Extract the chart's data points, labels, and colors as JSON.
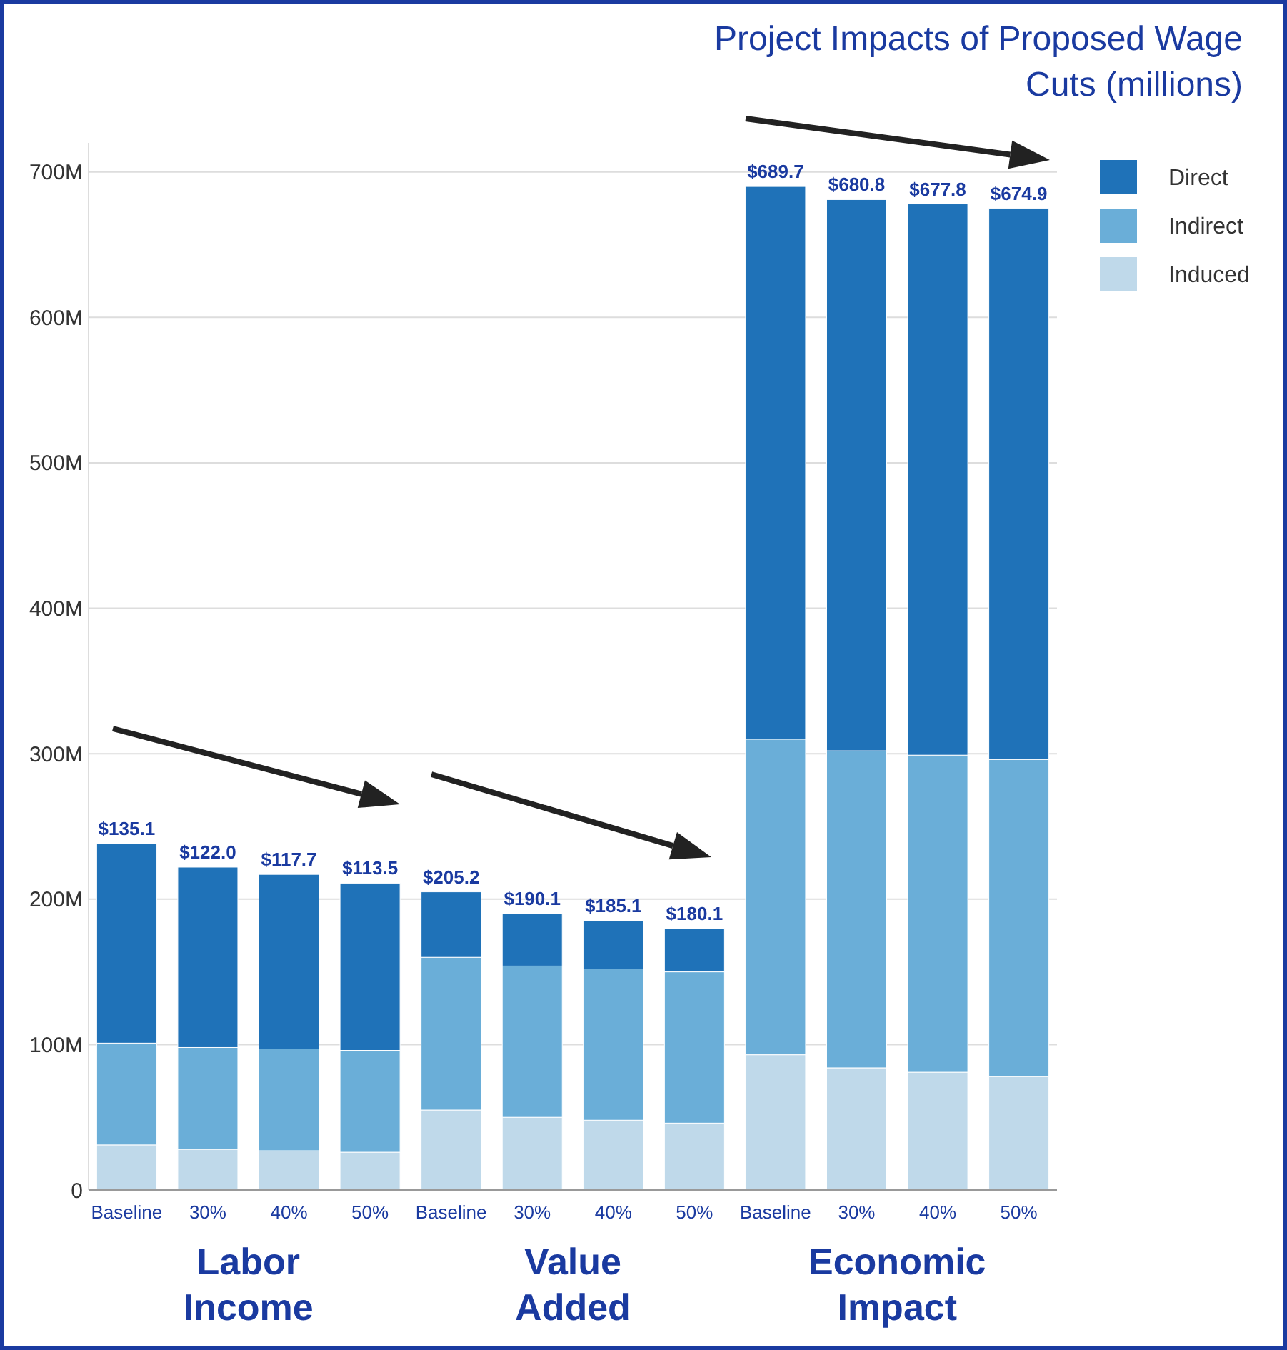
{
  "chart_data": {
    "type": "bar",
    "title": "Project Impacts of Proposed Wage Cuts (millions)",
    "categories": [
      "Baseline",
      "30%",
      "40%",
      "50%",
      "Baseline",
      "30%",
      "40%",
      "50%",
      "Baseline",
      "30%",
      "40%",
      "50%"
    ],
    "series": [
      {
        "name": "Induced",
        "color": "#bfd9ea",
        "values": [
          31,
          28,
          27,
          26,
          55,
          50,
          48,
          46,
          93,
          84,
          81,
          78
        ]
      },
      {
        "name": "Indirect",
        "color": "#6aaed8",
        "values": [
          70,
          70,
          70,
          70,
          105,
          104,
          104,
          104,
          217,
          218,
          218,
          218
        ]
      },
      {
        "name": "Direct",
        "color": "#1f72b8",
        "values": [
          137,
          124,
          120,
          115,
          45,
          36,
          33,
          30,
          380,
          379,
          379,
          379
        ]
      }
    ],
    "stacked": true,
    "value_labels": [
      "$135.1",
      "$122.0",
      "$117.7",
      "$113.5",
      "$205.2",
      "$190.1",
      "$185.1",
      "$180.1",
      "$689.7",
      "$680.8",
      "$677.8",
      "$674.9"
    ],
    "ylim": [
      0,
      720
    ],
    "yticks": [
      0,
      {
        "value": 100,
        "label": "100M"
      },
      {
        "value": 200,
        "label": "200M"
      },
      {
        "value": 300,
        "label": "300M"
      },
      {
        "value": 400,
        "label": "400M"
      },
      {
        "value": 500,
        "label": "500M"
      },
      {
        "value": 600,
        "label": "600M"
      },
      {
        "value": 700,
        "label": "700M"
      }
    ],
    "grid": "y",
    "legend": "top right",
    "annotations": [
      "Labor Income",
      "Value Added",
      "Economic Impact"
    ]
  }
}
